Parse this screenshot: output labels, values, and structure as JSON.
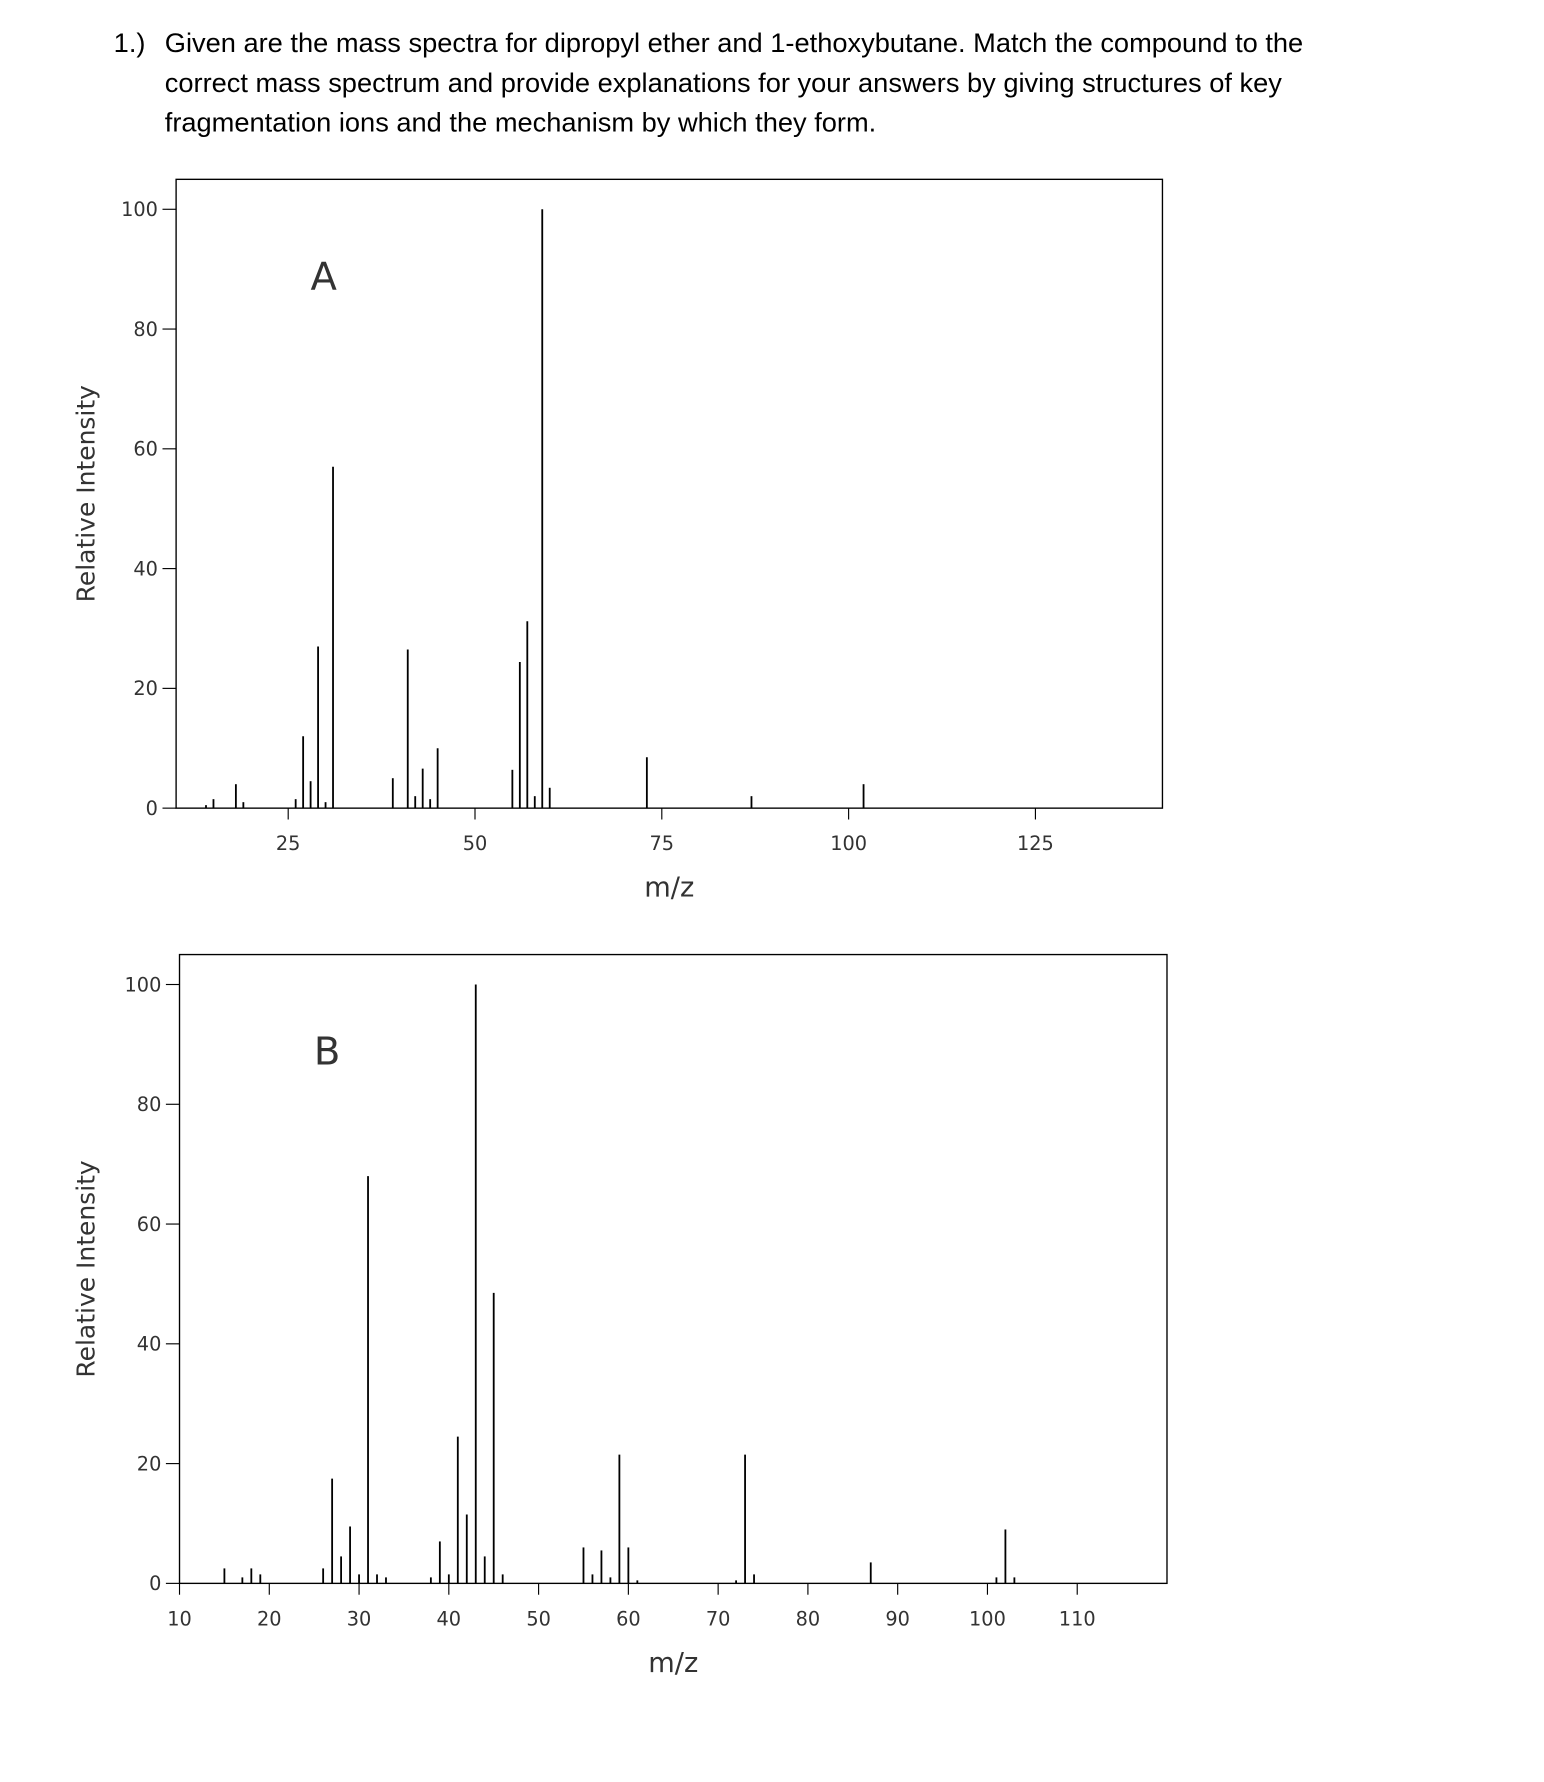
{
  "question": {
    "number": "1.)",
    "lines": [
      "Given are the mass spectra for dipropyl ether and 1-ethoxybutane. Match the compound to the",
      "correct mass spectrum and provide explanations for your answers by giving structures of key",
      "fragmentation ions and the mechanism by which they form."
    ]
  },
  "chart_data": [
    {
      "type": "stem",
      "annotation": "A",
      "x_label": "m/z",
      "y_label": "Relative Intensity",
      "color": "#000000",
      "x": [
        14,
        15,
        18,
        19,
        26,
        27,
        28,
        29,
        30,
        31,
        39,
        41,
        42,
        43,
        44,
        45,
        55,
        56,
        57,
        58,
        59,
        60,
        73,
        87,
        102
      ],
      "values": [
        0.5,
        1.5,
        4,
        1,
        1.5,
        12,
        4.5,
        27,
        1,
        57,
        5,
        26.5,
        2,
        6.6,
        1.5,
        10,
        6.4,
        24.4,
        31.2,
        2,
        100,
        3.4,
        8.5,
        2,
        4
      ],
      "xlim": [
        10,
        142
      ],
      "ylim": [
        0,
        105
      ],
      "xticks": [
        25,
        50,
        75,
        100,
        125
      ],
      "yticks": [
        0,
        20,
        40,
        60,
        80,
        100
      ]
    },
    {
      "type": "stem",
      "annotation": "B",
      "x_label": "m/z",
      "y_label": "Relative Intensity",
      "color": "#000000",
      "x": [
        15,
        17,
        18,
        19,
        26,
        27,
        28,
        29,
        30,
        31,
        32,
        33,
        38,
        39,
        40,
        41,
        42,
        43,
        44,
        45,
        46,
        55,
        56,
        57,
        58,
        59,
        60,
        61,
        72,
        73,
        74,
        87,
        101,
        102,
        103
      ],
      "values": [
        2.5,
        1,
        2.5,
        1.5,
        2.5,
        17.5,
        4.5,
        9.5,
        1.5,
        68,
        1.5,
        1,
        1,
        7,
        1.5,
        24.5,
        11.5,
        100,
        4.5,
        48.5,
        1.5,
        6,
        1.5,
        5.5,
        1,
        21.5,
        6,
        0.5,
        0.5,
        21.5,
        1.5,
        3.5,
        1,
        9,
        1
      ],
      "xlim": [
        10,
        120
      ],
      "ylim": [
        0,
        105
      ],
      "xticks": [
        10,
        20,
        30,
        40,
        50,
        60,
        70,
        80,
        90,
        100,
        110
      ],
      "yticks": [
        0,
        20,
        40,
        60,
        80,
        100
      ]
    }
  ]
}
